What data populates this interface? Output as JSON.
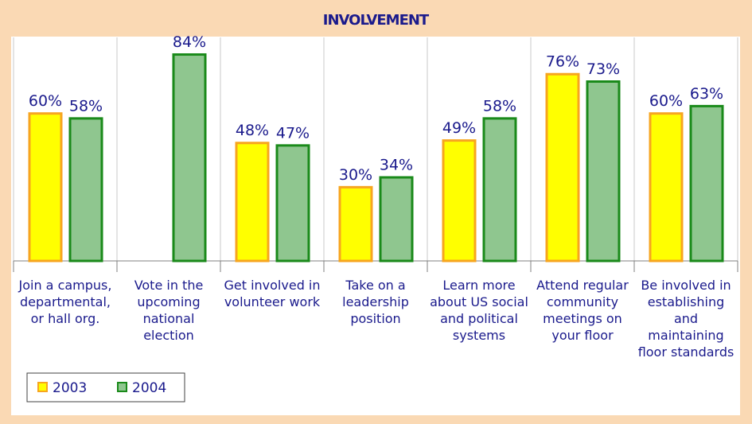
{
  "chart_data": {
    "type": "bar",
    "title": "INVOLVEMENT",
    "categories": [
      "Join a campus, departmental, or hall org.",
      "Vote in the upcoming national election",
      "Get involved in volunteer work",
      "Take on a leadership position",
      "Learn more about US social and political systems",
      "Attend regular community meetings on your floor",
      "Be involved in establishing and maintaining floor standards"
    ],
    "series": [
      {
        "name": "2003",
        "color": "#ffff00",
        "values": [
          60,
          null,
          48,
          30,
          49,
          76,
          60
        ],
        "value_labels": [
          "60%",
          null,
          "48%",
          "30%",
          "49%",
          "76%",
          "60%"
        ]
      },
      {
        "name": "2004",
        "color": "#8fc68f",
        "values": [
          58,
          84,
          47,
          34,
          58,
          73,
          63
        ],
        "value_labels": [
          "58%",
          "84%",
          "47%",
          "34%",
          "58%",
          "73%",
          "63%"
        ]
      }
    ],
    "ylim": [
      0,
      90
    ],
    "legend": "bottom-left"
  }
}
